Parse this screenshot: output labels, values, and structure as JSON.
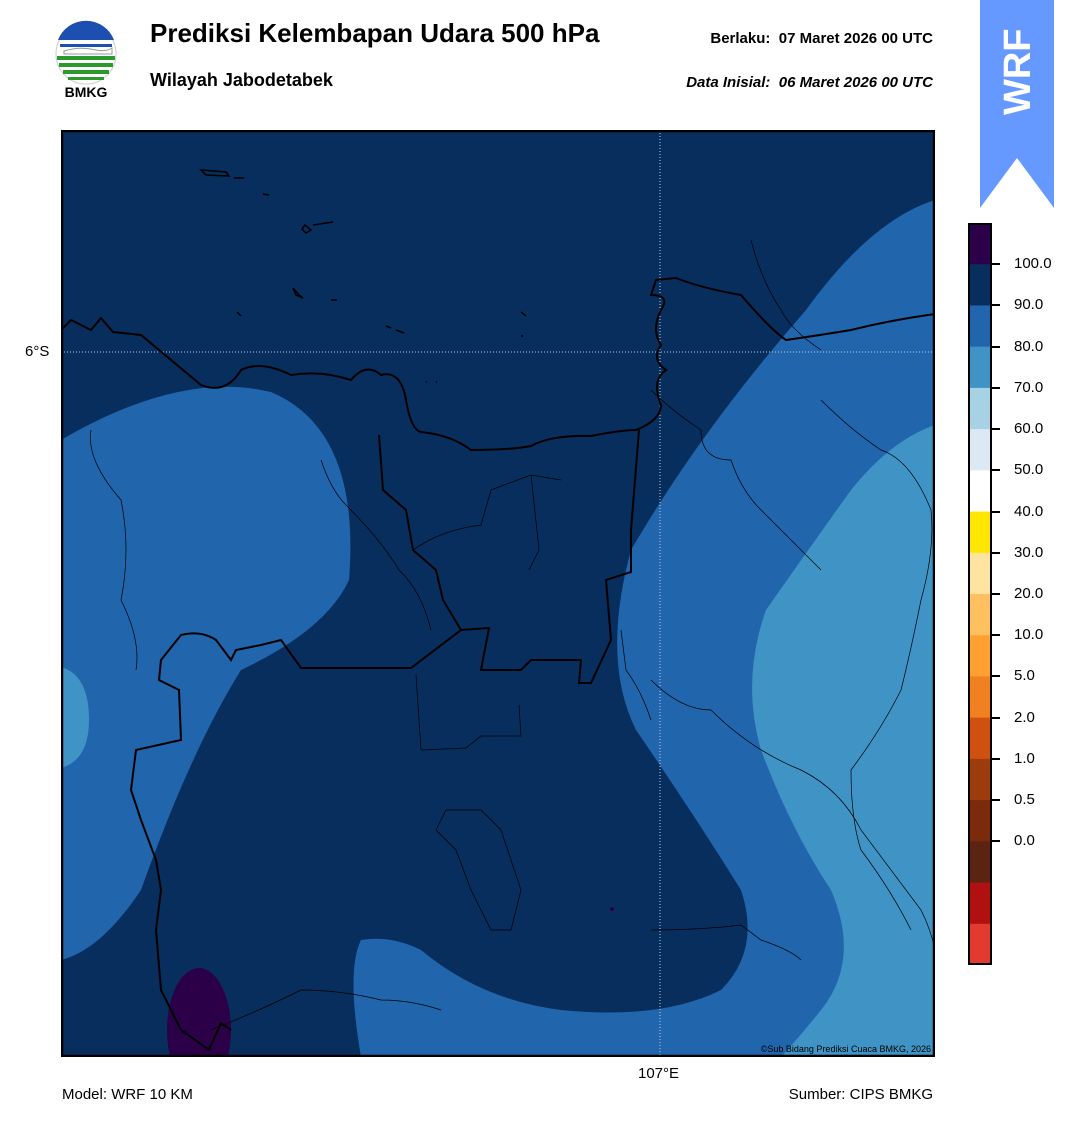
{
  "header": {
    "title": "Prediksi Kelembapan Udara 500 hPa",
    "subtitle": "Wilayah Jabodetabek",
    "valid_label": "Berlaku:",
    "valid_time": "07 Maret 2026 00 UTC",
    "init_label": "Data Inisial:",
    "init_time": "06 Maret 2026 00 UTC"
  },
  "logo": {
    "text": "BMKG",
    "icon": "bmkg-logo"
  },
  "banner": {
    "text": "WRF",
    "color": "#6699ff"
  },
  "map": {
    "lat_label": "6°S",
    "lon_label": "107°E",
    "credit": "©Sub Bidang Prediksi Cuaca BMKG, 2026",
    "field_colors": {
      "ninety_to_hundred": "#082e5e",
      "eighty_to_ninety": "#2165ad",
      "seventy_to_eighty": "#4093c5",
      "above_hundred": "#2c0048"
    }
  },
  "colorbar": {
    "labels": [
      "100.0",
      "90.0",
      "80.0",
      "70.0",
      "60.0",
      "50.0",
      "40.0",
      "30.0",
      "20.0",
      "10.0",
      "5.0",
      "2.0",
      "1.0",
      "0.5",
      "0.0"
    ],
    "colors_top_to_bottom": [
      "#2c0048",
      "#082e5e",
      "#2165ad",
      "#4093c5",
      "#a6d2e3",
      "#dbe9f4",
      "#ffffff",
      "#ffe600",
      "#ffe3a0",
      "#ffc060",
      "#ffa030",
      "#f08020",
      "#d05010",
      "#9c3c0c",
      "#7c2a0c",
      "#5a2410",
      "#b01010",
      "#e33a30"
    ]
  },
  "footer": {
    "model": "Model: WRF 10 KM",
    "source": "Sumber: CIPS BMKG"
  }
}
